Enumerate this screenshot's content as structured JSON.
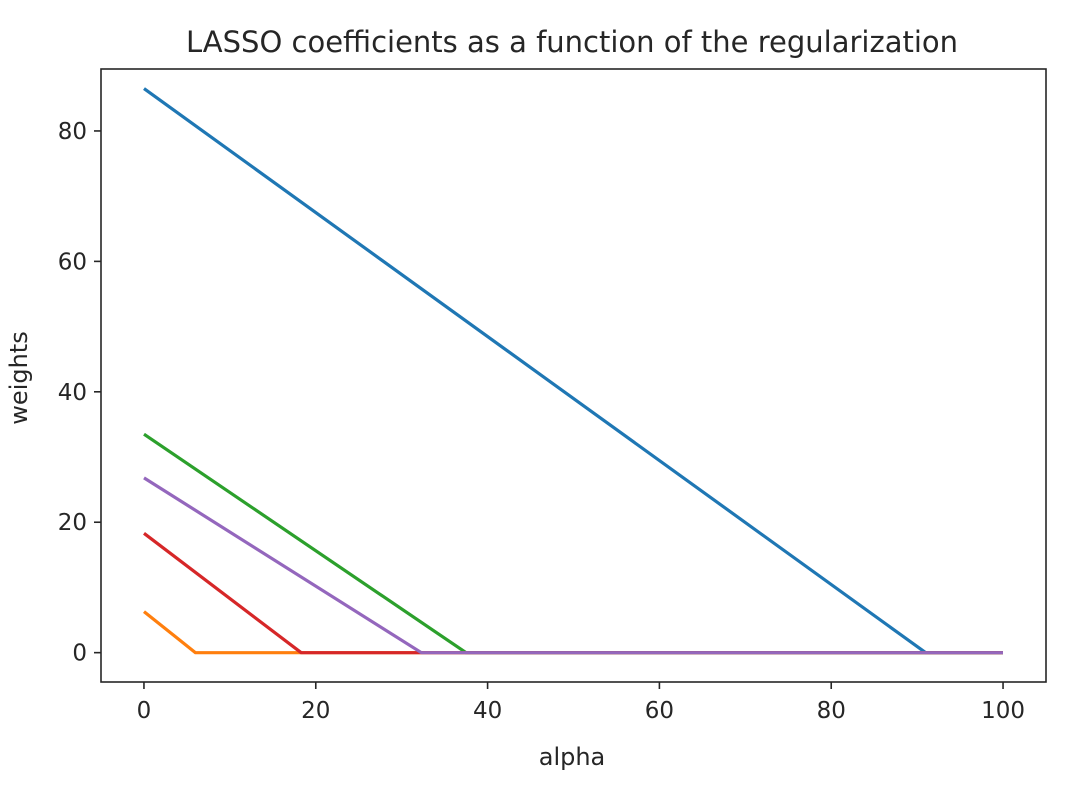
{
  "chart_data": {
    "type": "line",
    "title": "LASSO coefficients as a function of the regularization",
    "xlabel": "alpha",
    "ylabel": "weights",
    "xlim": [
      -5,
      105
    ],
    "ylim": [
      -4.5,
      89.5
    ],
    "xticks": [
      0,
      20,
      40,
      60,
      80,
      100
    ],
    "yticks": [
      0,
      20,
      40,
      60,
      80
    ],
    "grid": false,
    "series": [
      {
        "color": "#1f77b4",
        "x": [
          0,
          91,
          100
        ],
        "y": [
          86.5,
          0,
          0
        ]
      },
      {
        "color": "#ff7f0e",
        "x": [
          0,
          6,
          100
        ],
        "y": [
          6.3,
          0,
          0
        ]
      },
      {
        "color": "#2ca02c",
        "x": [
          0,
          37.5,
          100
        ],
        "y": [
          33.5,
          0,
          0
        ]
      },
      {
        "color": "#d62728",
        "x": [
          0,
          18.3,
          100
        ],
        "y": [
          18.3,
          0,
          0
        ]
      },
      {
        "color": "#9467bd",
        "x": [
          0,
          32.3,
          100
        ],
        "y": [
          26.8,
          0,
          0
        ]
      }
    ]
  }
}
